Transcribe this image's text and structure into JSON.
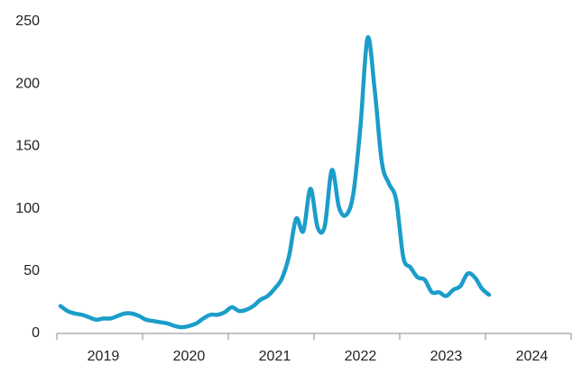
{
  "chart_data": {
    "type": "line",
    "categories": [
      null,
      null,
      null,
      null,
      null,
      null,
      "2019",
      null,
      null,
      null,
      null,
      null,
      null,
      null,
      null,
      null,
      null,
      null,
      "2020",
      null,
      null,
      null,
      null,
      null,
      null,
      null,
      null,
      null,
      null,
      null,
      "2021",
      null,
      null,
      null,
      null,
      null,
      null,
      null,
      null,
      null,
      null,
      null,
      "2022",
      null,
      null,
      null,
      null,
      null,
      null,
      null,
      null,
      null,
      null,
      null,
      "2023",
      null,
      null,
      null,
      null,
      null,
      null,
      null,
      null,
      null,
      null,
      null,
      "2024",
      null,
      null,
      null,
      null,
      null
    ],
    "series": [
      {
        "color": "#1b9dc9",
        "values": [
          22,
          18,
          16,
          15,
          13,
          11,
          12,
          12,
          14,
          16,
          16,
          14,
          11,
          10,
          9,
          8,
          6,
          5,
          6,
          8,
          12,
          15,
          15,
          17,
          21,
          18,
          19,
          22,
          27,
          30,
          36,
          44,
          62,
          92,
          82,
          116,
          85,
          86,
          131,
          101,
          95,
          112,
          166,
          237,
          195,
          137,
          120,
          107,
          61,
          53,
          45,
          43,
          33,
          33,
          30,
          35,
          38,
          48,
          45,
          36,
          31,
          null,
          null,
          null,
          null,
          null,
          null,
          null,
          null,
          null,
          null,
          null
        ]
      }
    ],
    "ylim": [
      0,
      250
    ],
    "yticks": [
      0,
      50,
      100,
      150,
      200,
      250
    ],
    "grid": false
  }
}
